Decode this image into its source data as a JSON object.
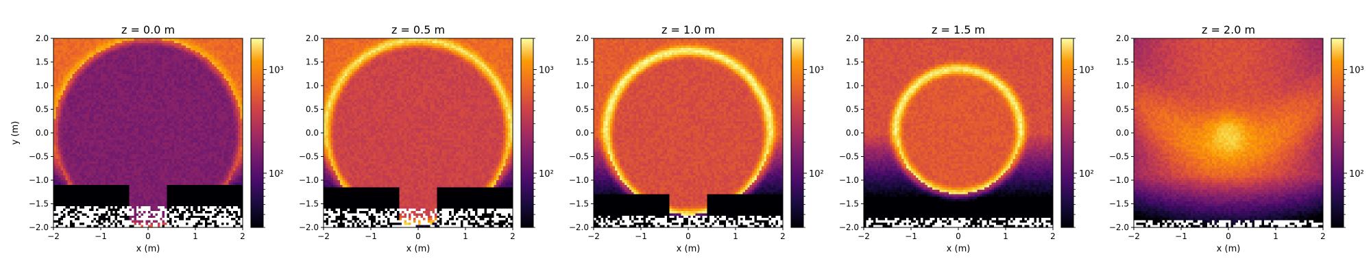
{
  "chart_data": [
    {
      "type": "heatmap",
      "title": "z = 0.0 m",
      "xlabel": "x (m)",
      "ylabel": "y (m)",
      "xlim": [
        -2,
        2
      ],
      "ylim": [
        -2,
        2
      ],
      "xticks": [
        "−2",
        "−1",
        "0",
        "1",
        "2"
      ],
      "yticks": [
        "−2.0",
        "−1.5",
        "−1.0",
        "−0.5",
        "0.0",
        "0.5",
        "1.0",
        "1.5",
        "2.0"
      ],
      "colorbar": {
        "scale": "log",
        "colormap": "inferno",
        "ticks": [
          "10²",
          "10³"
        ],
        "tick_values": [
          100,
          1000
        ],
        "range": [
          30,
          2000
        ]
      },
      "ring": {
        "center_x": 0.0,
        "center_y": 0.0,
        "radius": 2.0
      },
      "ring_peak": 250,
      "interior": 130,
      "outside": 700,
      "empty_below_y": -1.55
    },
    {
      "type": "heatmap",
      "title": "z = 0.5 m",
      "xlabel": "x (m)",
      "ylabel": "",
      "xlim": [
        -2,
        2
      ],
      "ylim": [
        -2,
        2
      ],
      "xticks": [
        "−2",
        "−1",
        "0",
        "1",
        "2"
      ],
      "yticks": [
        "−2.0",
        "−1.5",
        "−1.0",
        "−0.5",
        "0.0",
        "0.5",
        "1.0",
        "1.5",
        "2.0"
      ],
      "colorbar": {
        "scale": "log",
        "colormap": "inferno",
        "ticks": [
          "10²",
          "10³"
        ],
        "tick_values": [
          100,
          1000
        ],
        "range": [
          30,
          2000
        ]
      },
      "ring": {
        "center_x": 0.0,
        "center_y": 0.0,
        "radius": 1.95
      },
      "ring_peak": 900,
      "interior": 300,
      "outside": 700,
      "empty_below_y": -1.6
    },
    {
      "type": "heatmap",
      "title": "z = 1.0 m",
      "xlabel": "x (m)",
      "ylabel": "",
      "xlim": [
        -2,
        2
      ],
      "ylim": [
        -2,
        2
      ],
      "xticks": [
        "−2",
        "−1",
        "0",
        "1",
        "2"
      ],
      "yticks": [
        "−2.0",
        "−1.5",
        "−1.0",
        "−0.5",
        "0.0",
        "0.5",
        "1.0",
        "1.5",
        "2.0"
      ],
      "colorbar": {
        "scale": "log",
        "colormap": "inferno",
        "ticks": [
          "10²",
          "10³"
        ],
        "tick_values": [
          100,
          1000
        ],
        "range": [
          30,
          2000
        ]
      },
      "ring": {
        "center_x": 0.0,
        "center_y": 0.0,
        "radius": 1.73
      },
      "ring_peak": 1300,
      "interior": 350,
      "outside": 600,
      "empty_below_y": -1.75
    },
    {
      "type": "heatmap",
      "title": "z = 1.5 m",
      "xlabel": "x (m)",
      "ylabel": "",
      "xlim": [
        -2,
        2
      ],
      "ylim": [
        -2,
        2
      ],
      "xticks": [
        "−2",
        "−1",
        "0",
        "1",
        "2"
      ],
      "yticks": [
        "−2.0",
        "−1.5",
        "−1.0",
        "−0.5",
        "0.0",
        "0.5",
        "1.0",
        "1.5",
        "2.0"
      ],
      "colorbar": {
        "scale": "log",
        "colormap": "inferno",
        "ticks": [
          "10²",
          "10³"
        ],
        "tick_values": [
          100,
          1000
        ],
        "range": [
          30,
          2000
        ]
      },
      "ring": {
        "center_x": 0.0,
        "center_y": 0.03,
        "radius": 1.32
      },
      "ring_peak": 1200,
      "interior": 400,
      "outside": 500,
      "empty_below_y": -1.8
    },
    {
      "type": "heatmap",
      "title": "z = 2.0 m",
      "xlabel": "x (m)",
      "ylabel": "",
      "xlim": [
        -2,
        2
      ],
      "ylim": [
        -2,
        2
      ],
      "xticks": [
        "−2",
        "−1",
        "0",
        "1",
        "2"
      ],
      "yticks": [
        "−2.0",
        "−1.5",
        "−1.0",
        "−0.5",
        "0.0",
        "0.5",
        "1.0",
        "1.5",
        "2.0"
      ],
      "colorbar": {
        "scale": "log",
        "colormap": "inferno",
        "ticks": [
          "10²",
          "10³"
        ],
        "tick_values": [
          100,
          1000
        ],
        "range": [
          30,
          2000
        ]
      },
      "ring": {
        "center_x": 0.0,
        "center_y": 0.0,
        "radius": 0.0
      },
      "ring_peak": 1100,
      "interior": 1100,
      "outside": 450,
      "empty_below_y": -1.85
    }
  ]
}
